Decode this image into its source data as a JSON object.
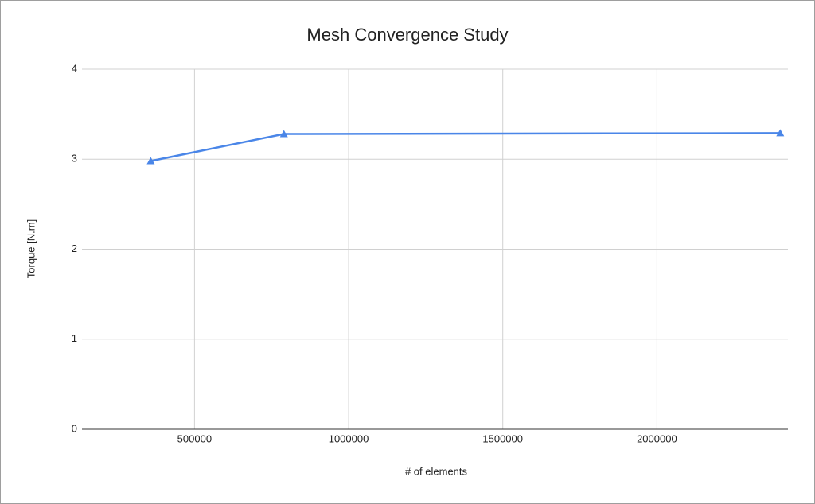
{
  "chart_data": {
    "type": "line",
    "title": "Mesh Convergence Study",
    "x_label": "# of elements",
    "y_label": "Torque [N.m]",
    "x": [
      358000,
      790000,
      2400000
    ],
    "series": [
      {
        "color": "#4a86e8",
        "values": [
          2.98,
          3.28,
          3.29
        ]
      }
    ],
    "xlim": [
      135000,
      2425000
    ],
    "xticks": [
      500000,
      1000000,
      1500000,
      2000000
    ],
    "ylim": [
      0,
      4
    ],
    "yticks": [
      0,
      1,
      2,
      3,
      4
    ],
    "grid": true
  }
}
